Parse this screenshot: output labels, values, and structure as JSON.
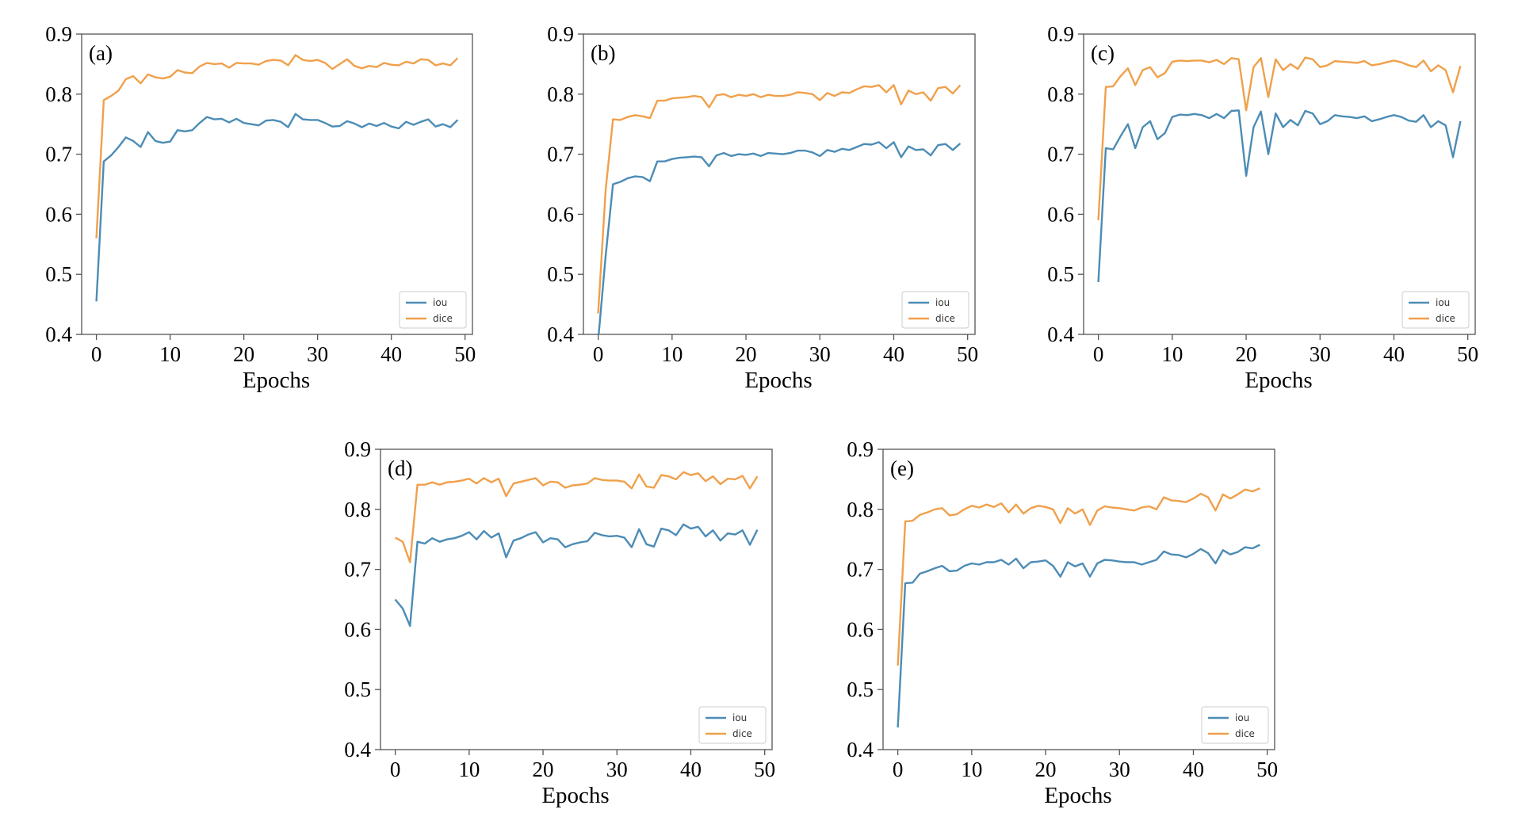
{
  "chart_data": [
    {
      "type": "line",
      "panel_label": "(a)",
      "xlabel": "Epochs",
      "xlim": [
        -2,
        51
      ],
      "ylim": [
        0.4,
        0.9
      ],
      "xticks": [
        "0",
        "10",
        "20",
        "30",
        "40",
        "50"
      ],
      "yticks": [
        "0.4",
        "0.5",
        "0.6",
        "0.7",
        "0.8",
        "0.9"
      ],
      "legend": "lower-right",
      "series": [
        {
          "name": "iou",
          "color": "#4c8cb5",
          "values": [
            0.455,
            0.688,
            0.698,
            0.712,
            0.728,
            0.722,
            0.712,
            0.737,
            0.722,
            0.719,
            0.721,
            0.74,
            0.738,
            0.74,
            0.752,
            0.762,
            0.758,
            0.759,
            0.753,
            0.759,
            0.752,
            0.75,
            0.748,
            0.756,
            0.757,
            0.754,
            0.745,
            0.767,
            0.758,
            0.757,
            0.757,
            0.752,
            0.746,
            0.747,
            0.755,
            0.751,
            0.745,
            0.751,
            0.747,
            0.752,
            0.746,
            0.743,
            0.754,
            0.749,
            0.754,
            0.758,
            0.746,
            0.75,
            0.745,
            0.757
          ]
        },
        {
          "name": "dice",
          "color": "#f0a04b",
          "values": [
            0.56,
            0.79,
            0.797,
            0.806,
            0.825,
            0.83,
            0.818,
            0.833,
            0.828,
            0.826,
            0.829,
            0.84,
            0.836,
            0.835,
            0.846,
            0.852,
            0.85,
            0.851,
            0.844,
            0.852,
            0.851,
            0.851,
            0.849,
            0.855,
            0.857,
            0.856,
            0.848,
            0.865,
            0.857,
            0.855,
            0.857,
            0.852,
            0.842,
            0.85,
            0.858,
            0.847,
            0.843,
            0.847,
            0.845,
            0.852,
            0.849,
            0.848,
            0.854,
            0.851,
            0.858,
            0.857,
            0.848,
            0.851,
            0.848,
            0.86
          ]
        }
      ]
    },
    {
      "type": "line",
      "panel_label": "(b)",
      "xlabel": "Epochs",
      "xlim": [
        -2,
        51
      ],
      "ylim": [
        0.4,
        0.9
      ],
      "xticks": [
        "0",
        "10",
        "20",
        "30",
        "40",
        "50"
      ],
      "yticks": [
        "0.4",
        "0.5",
        "0.6",
        "0.7",
        "0.8",
        "0.9"
      ],
      "legend": "lower-right",
      "series": [
        {
          "name": "iou",
          "color": "#4c8cb5",
          "values": [
            0.39,
            0.53,
            0.65,
            0.654,
            0.66,
            0.663,
            0.662,
            0.655,
            0.688,
            0.688,
            0.692,
            0.694,
            0.695,
            0.696,
            0.695,
            0.68,
            0.698,
            0.702,
            0.697,
            0.7,
            0.699,
            0.701,
            0.697,
            0.702,
            0.701,
            0.7,
            0.702,
            0.706,
            0.706,
            0.703,
            0.697,
            0.707,
            0.704,
            0.709,
            0.707,
            0.712,
            0.717,
            0.716,
            0.72,
            0.71,
            0.72,
            0.695,
            0.713,
            0.707,
            0.708,
            0.698,
            0.715,
            0.717,
            0.707,
            0.718
          ]
        },
        {
          "name": "dice",
          "color": "#f0a04b",
          "values": [
            0.435,
            0.64,
            0.758,
            0.757,
            0.762,
            0.765,
            0.763,
            0.76,
            0.789,
            0.789,
            0.793,
            0.794,
            0.795,
            0.797,
            0.795,
            0.778,
            0.798,
            0.8,
            0.795,
            0.799,
            0.797,
            0.8,
            0.795,
            0.799,
            0.797,
            0.797,
            0.799,
            0.803,
            0.802,
            0.8,
            0.79,
            0.802,
            0.797,
            0.803,
            0.802,
            0.808,
            0.813,
            0.812,
            0.815,
            0.803,
            0.815,
            0.783,
            0.806,
            0.8,
            0.803,
            0.789,
            0.81,
            0.812,
            0.801,
            0.815
          ]
        }
      ]
    },
    {
      "type": "line",
      "panel_label": "(c)",
      "xlabel": "Epochs",
      "xlim": [
        -2,
        51
      ],
      "ylim": [
        0.4,
        0.9
      ],
      "xticks": [
        "0",
        "10",
        "20",
        "30",
        "40",
        "50"
      ],
      "yticks": [
        "0.4",
        "0.5",
        "0.6",
        "0.7",
        "0.8",
        "0.9"
      ],
      "legend": "lower-right",
      "series": [
        {
          "name": "iou",
          "color": "#4c8cb5",
          "values": [
            0.487,
            0.71,
            0.708,
            0.73,
            0.75,
            0.71,
            0.745,
            0.755,
            0.725,
            0.735,
            0.762,
            0.766,
            0.765,
            0.767,
            0.765,
            0.76,
            0.767,
            0.76,
            0.772,
            0.773,
            0.664,
            0.745,
            0.771,
            0.7,
            0.768,
            0.745,
            0.757,
            0.748,
            0.772,
            0.768,
            0.75,
            0.755,
            0.765,
            0.763,
            0.762,
            0.76,
            0.763,
            0.755,
            0.758,
            0.762,
            0.765,
            0.762,
            0.756,
            0.754,
            0.765,
            0.745,
            0.755,
            0.748,
            0.695,
            0.755
          ]
        },
        {
          "name": "dice",
          "color": "#f0a04b",
          "values": [
            0.59,
            0.812,
            0.813,
            0.83,
            0.843,
            0.815,
            0.84,
            0.845,
            0.828,
            0.835,
            0.854,
            0.856,
            0.855,
            0.856,
            0.856,
            0.853,
            0.857,
            0.85,
            0.86,
            0.858,
            0.773,
            0.845,
            0.86,
            0.795,
            0.858,
            0.84,
            0.85,
            0.842,
            0.861,
            0.858,
            0.845,
            0.848,
            0.855,
            0.854,
            0.853,
            0.852,
            0.855,
            0.848,
            0.85,
            0.853,
            0.856,
            0.853,
            0.848,
            0.845,
            0.856,
            0.838,
            0.848,
            0.84,
            0.803,
            0.847
          ]
        }
      ]
    },
    {
      "type": "line",
      "panel_label": "(d)",
      "xlabel": "Epochs",
      "xlim": [
        -2,
        51
      ],
      "ylim": [
        0.4,
        0.9
      ],
      "xticks": [
        "0",
        "10",
        "20",
        "30",
        "40",
        "50"
      ],
      "yticks": [
        "0.4",
        "0.5",
        "0.6",
        "0.7",
        "0.8",
        "0.9"
      ],
      "legend": "lower-right",
      "series": [
        {
          "name": "iou",
          "color": "#4c8cb5",
          "values": [
            0.65,
            0.635,
            0.606,
            0.746,
            0.743,
            0.752,
            0.746,
            0.75,
            0.752,
            0.756,
            0.762,
            0.75,
            0.764,
            0.753,
            0.76,
            0.72,
            0.748,
            0.752,
            0.758,
            0.762,
            0.745,
            0.752,
            0.75,
            0.737,
            0.742,
            0.745,
            0.747,
            0.761,
            0.757,
            0.755,
            0.756,
            0.753,
            0.737,
            0.767,
            0.742,
            0.738,
            0.768,
            0.765,
            0.757,
            0.775,
            0.768,
            0.771,
            0.755,
            0.765,
            0.748,
            0.76,
            0.758,
            0.765,
            0.741,
            0.766
          ]
        },
        {
          "name": "dice",
          "color": "#f0a04b",
          "values": [
            0.753,
            0.746,
            0.712,
            0.841,
            0.841,
            0.845,
            0.841,
            0.845,
            0.846,
            0.848,
            0.851,
            0.843,
            0.852,
            0.845,
            0.851,
            0.822,
            0.843,
            0.846,
            0.849,
            0.852,
            0.84,
            0.846,
            0.845,
            0.836,
            0.84,
            0.841,
            0.843,
            0.852,
            0.849,
            0.848,
            0.848,
            0.846,
            0.835,
            0.858,
            0.838,
            0.836,
            0.857,
            0.855,
            0.85,
            0.862,
            0.857,
            0.86,
            0.847,
            0.855,
            0.842,
            0.851,
            0.85,
            0.856,
            0.835,
            0.855
          ]
        }
      ]
    },
    {
      "type": "line",
      "panel_label": "(e)",
      "xlabel": "Epochs",
      "xlim": [
        -2,
        51
      ],
      "ylim": [
        0.4,
        0.9
      ],
      "xticks": [
        "0",
        "10",
        "20",
        "30",
        "40",
        "50"
      ],
      "yticks": [
        "0.4",
        "0.5",
        "0.6",
        "0.7",
        "0.8",
        "0.9"
      ],
      "legend": "lower-right",
      "series": [
        {
          "name": "iou",
          "color": "#4c8cb5",
          "values": [
            0.437,
            0.677,
            0.678,
            0.693,
            0.697,
            0.702,
            0.706,
            0.697,
            0.698,
            0.706,
            0.71,
            0.708,
            0.712,
            0.712,
            0.716,
            0.708,
            0.718,
            0.702,
            0.712,
            0.713,
            0.715,
            0.706,
            0.688,
            0.712,
            0.705,
            0.71,
            0.688,
            0.71,
            0.716,
            0.715,
            0.713,
            0.712,
            0.712,
            0.708,
            0.712,
            0.716,
            0.73,
            0.725,
            0.724,
            0.72,
            0.726,
            0.734,
            0.727,
            0.71,
            0.732,
            0.725,
            0.729,
            0.737,
            0.735,
            0.741
          ]
        },
        {
          "name": "dice",
          "color": "#f0a04b",
          "values": [
            0.54,
            0.78,
            0.781,
            0.791,
            0.795,
            0.8,
            0.802,
            0.79,
            0.792,
            0.8,
            0.806,
            0.803,
            0.808,
            0.804,
            0.81,
            0.795,
            0.808,
            0.793,
            0.802,
            0.806,
            0.804,
            0.8,
            0.777,
            0.802,
            0.793,
            0.8,
            0.774,
            0.798,
            0.805,
            0.803,
            0.802,
            0.8,
            0.798,
            0.803,
            0.805,
            0.8,
            0.82,
            0.815,
            0.814,
            0.812,
            0.818,
            0.826,
            0.82,
            0.798,
            0.825,
            0.818,
            0.825,
            0.833,
            0.83,
            0.835
          ]
        }
      ]
    }
  ]
}
